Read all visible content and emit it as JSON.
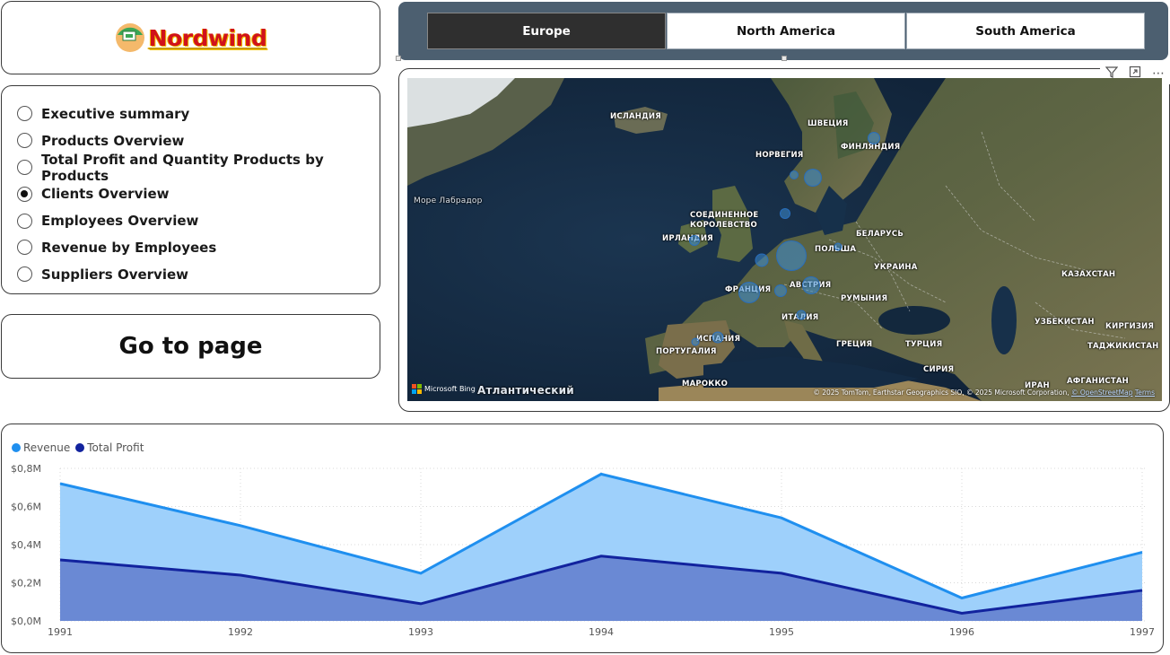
{
  "logo": {
    "text": "Nordwind"
  },
  "nav": {
    "options": [
      {
        "label": "Executive summary",
        "selected": false
      },
      {
        "label": "Products Overview",
        "selected": false
      },
      {
        "label": "Total Profit and Quantity Products by Products",
        "selected": false
      },
      {
        "label": "Clients Overview",
        "selected": true
      },
      {
        "label": "Employees Overview",
        "selected": false
      },
      {
        "label": "Revenue by Employees",
        "selected": false
      },
      {
        "label": "Suppliers Overview",
        "selected": false
      }
    ],
    "go_button": "Go to page"
  },
  "slicer": {
    "options": [
      "Europe",
      "North America",
      "South America"
    ],
    "selected": "Europe"
  },
  "map": {
    "labels": {
      "iceland": "ИСЛАНДИЯ",
      "sweden": "ШВЕЦИЯ",
      "finland": "ФИНЛЯНДИЯ",
      "norway": "НОРВЕГИЯ",
      "labrador": "Море Лабрадор",
      "uk": "СОЕДИНЕННОЕ КОРОЛЕВСТВО",
      "ireland": "ИРЛАНДИЯ",
      "belarus": "БЕЛАРУСЬ",
      "poland": "ПОЛЬША",
      "ukraine": "УКРАИНА",
      "kazakhstan": "КАЗАХСТАН",
      "france": "ФРАНЦИЯ",
      "austria": "АВСТРИЯ",
      "romania": "РУМЫНИЯ",
      "italy": "ИТАЛИЯ",
      "spain": "ИСПАНИЯ",
      "portugal": "ПОРТУГАЛИЯ",
      "greece": "ГРЕЦИЯ",
      "turkey": "ТУРЦИЯ",
      "uzbekistan": "УЗБЕКИСТАН",
      "kyrgyzstan": "КИРГИЗИЯ",
      "tajikistan": "ТАДЖИКИСТАН",
      "syria": "СИРИЯ",
      "iran": "ИРАН",
      "afghanistan": "АФГАНИСТАН",
      "morocco": "МАРОККО",
      "atlantic": "Атлантический"
    },
    "bing_label": "Microsoft Bing",
    "attribution": "© 2025 TomTom, Earthstar Geographics SIO, © 2025 Microsoft Corporation, ",
    "attribution_osm": "© OpenStreetMap",
    "attribution_terms": "Terms",
    "tools": {
      "filter_icon": "filter-icon",
      "focus_icon": "focus-mode-icon",
      "more_icon": "more-options-icon"
    }
  },
  "colors": {
    "revenue": "#1f8fef",
    "revenue_fill": "#9ed0fb",
    "profit": "#12239e",
    "profit_fill": "#6a89d4",
    "slicer_bg": "#4c5f70"
  },
  "chart_data": {
    "type": "area",
    "categories": [
      "1991",
      "1992",
      "1993",
      "1994",
      "1995",
      "1996",
      "1997"
    ],
    "series": [
      {
        "name": "Revenue",
        "values": [
          0.72,
          0.5,
          0.25,
          0.77,
          0.54,
          0.12,
          0.36
        ]
      },
      {
        "name": "Total Profit",
        "values": [
          0.32,
          0.24,
          0.09,
          0.34,
          0.25,
          0.04,
          0.16
        ]
      }
    ],
    "yticks": [
      "$0,0M",
      "$0,2M",
      "$0,4M",
      "$0,6M",
      "$0,8M"
    ],
    "ytick_values": [
      0,
      0.2,
      0.4,
      0.6,
      0.8
    ],
    "ylim": [
      0,
      0.8
    ],
    "legend": [
      "Revenue",
      "Total Profit"
    ],
    "title": "",
    "xlabel": "",
    "ylabel": ""
  }
}
